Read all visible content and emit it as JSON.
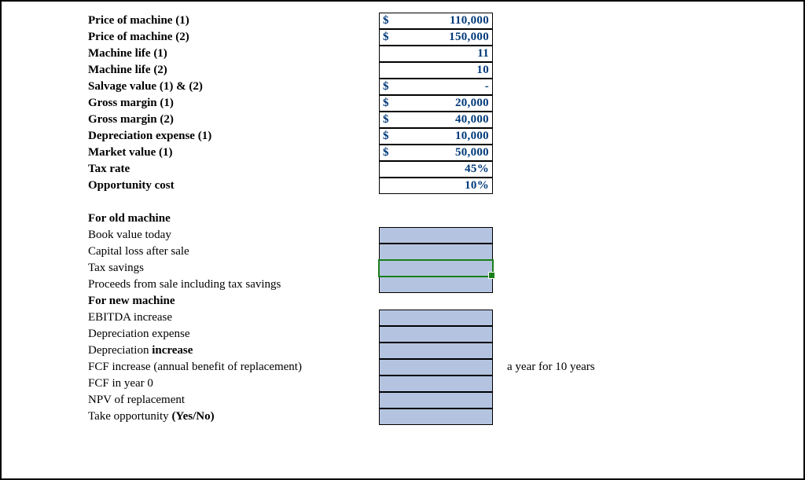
{
  "inputs": [
    {
      "label": "Price of machine (1)",
      "bold": true,
      "currency": "$",
      "value": "110,000"
    },
    {
      "label": "Price of machine (2)",
      "bold": true,
      "currency": "$",
      "value": "150,000"
    },
    {
      "label": "Machine life (1)",
      "bold": true,
      "currency": "",
      "value": "11"
    },
    {
      "label": "Machine life (2)",
      "bold": true,
      "currency": "",
      "value": "10"
    },
    {
      "label": "Salvage value (1) & (2)",
      "bold": true,
      "currency": "$",
      "value": "-"
    },
    {
      "label": "Gross margin (1)",
      "bold": true,
      "currency": "$",
      "value": "20,000"
    },
    {
      "label": "Gross margin (2)",
      "bold": true,
      "currency": "$",
      "value": "40,000"
    },
    {
      "label": "Depreciation expense (1)",
      "bold": true,
      "currency": "$",
      "value": "10,000"
    },
    {
      "label": "Market value (1)",
      "bold": true,
      "currency": "$",
      "value": "50,000"
    },
    {
      "label": "Tax rate",
      "bold": true,
      "currency": "",
      "value": "45%"
    },
    {
      "label": "Opportunity cost",
      "bold": true,
      "currency": "",
      "value": "10%"
    }
  ],
  "section_old_header": "For old machine",
  "old": [
    {
      "label": "Book value today",
      "selected": false
    },
    {
      "label": "Capital loss after sale",
      "selected": false
    },
    {
      "label": "Tax savings",
      "selected": true
    },
    {
      "label": "Proceeds from sale including tax savings",
      "selected": false
    }
  ],
  "section_new_header": "For new machine",
  "new": [
    {
      "label": "EBITDA increase",
      "trailing": ""
    },
    {
      "label": "Depreciation expense",
      "trailing": ""
    },
    {
      "label": "Depreciation increase",
      "bold_segment": "increase",
      "trailing": ""
    },
    {
      "label": "FCF increase (annual benefit of replacement)",
      "trailing": "a year for 10 years"
    },
    {
      "label": "FCF in year 0",
      "trailing": ""
    },
    {
      "label": "NPV of replacement",
      "trailing": ""
    },
    {
      "label": "Take opportunity (Yes/No)",
      "bold_segment": "(Yes/No)",
      "trailing": ""
    }
  ],
  "colors": {
    "value_text": "#003a7a",
    "shaded_fill": "#b4c4e0",
    "selection": "#1a7f1a"
  }
}
